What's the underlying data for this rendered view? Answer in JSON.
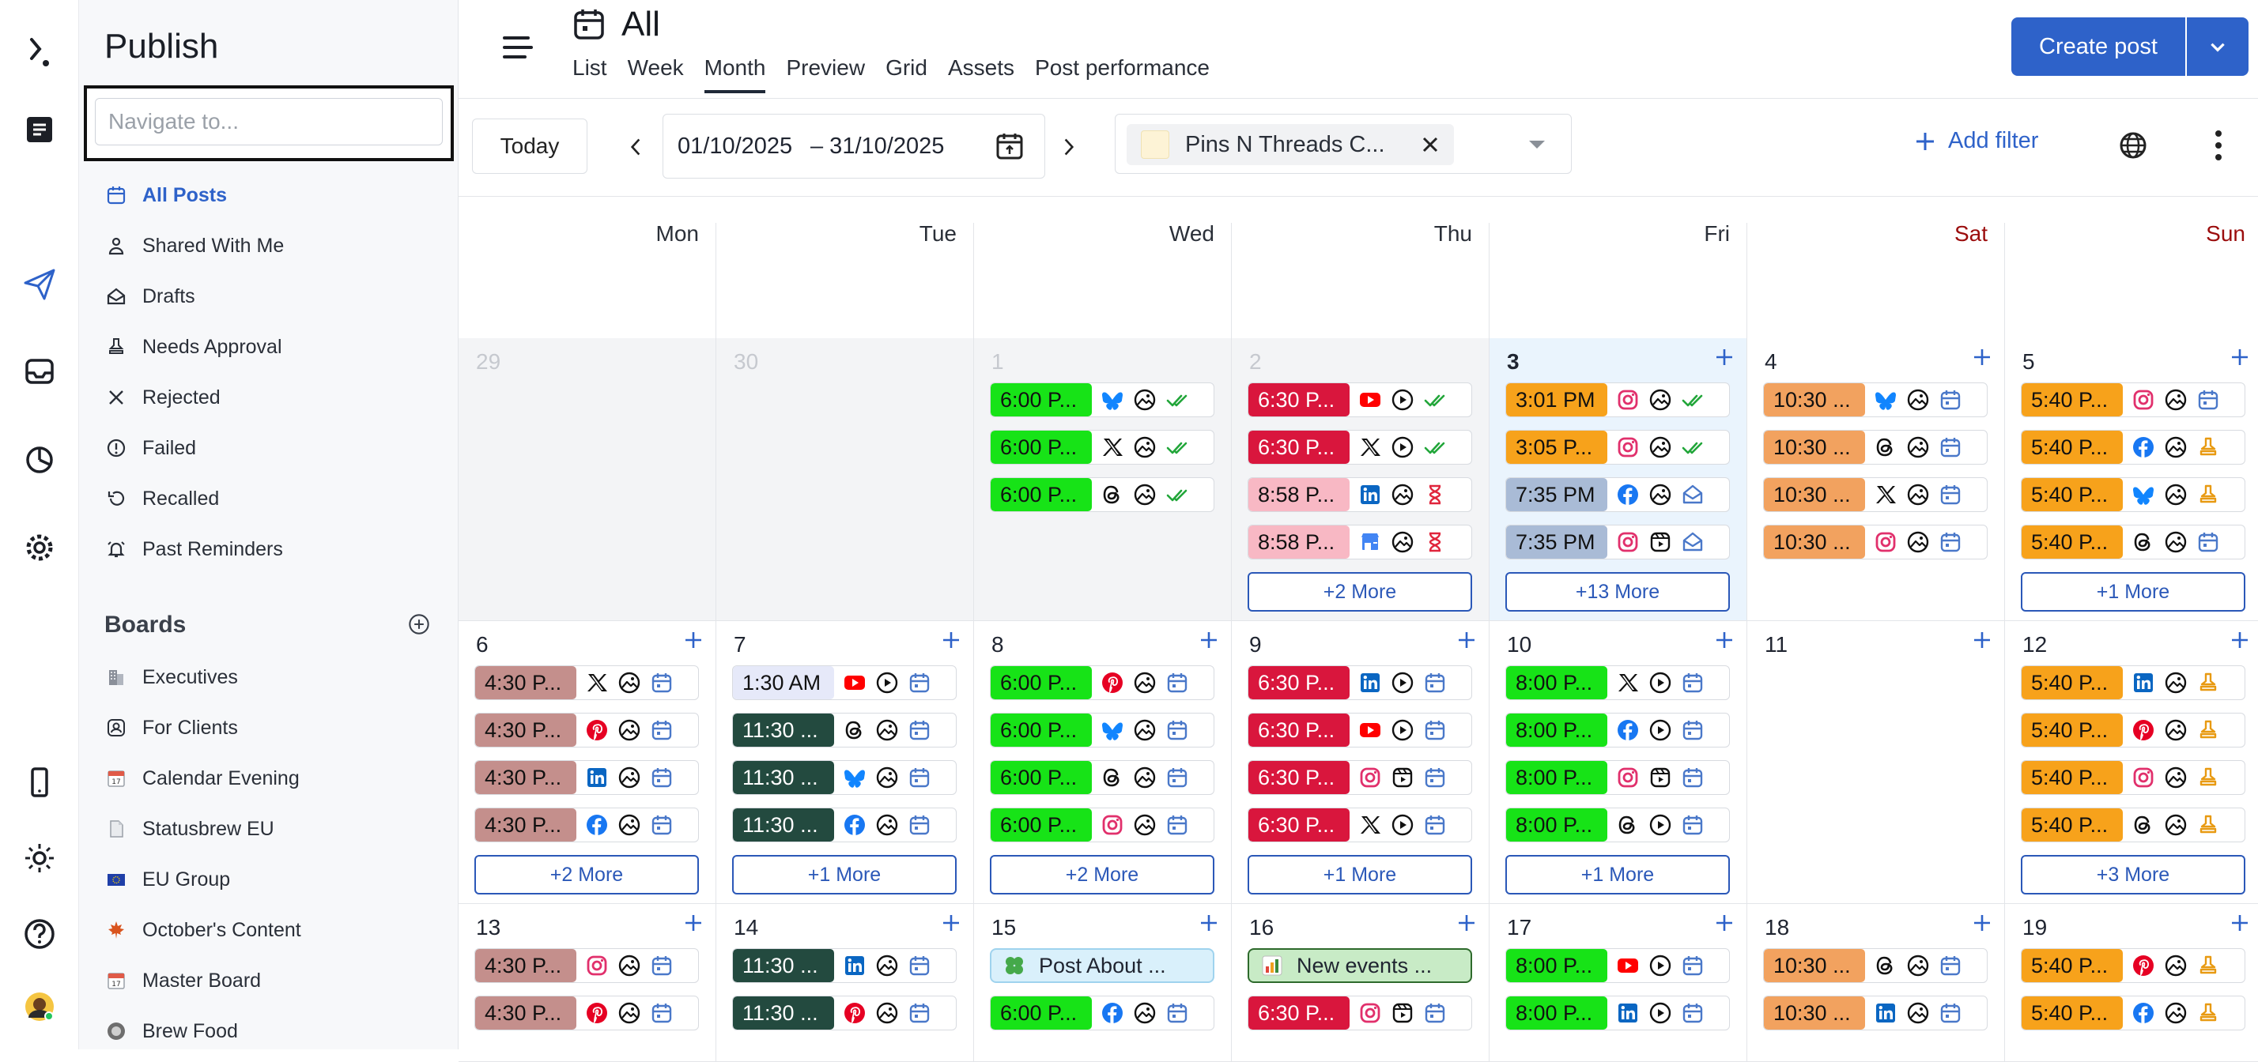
{
  "colors": {
    "accent": "#2e62c9",
    "weekend": "#9b0d0d",
    "today_bg": "#eaf4fd"
  },
  "rail": {
    "items": [
      "logo-icon",
      "publish-box-icon",
      "send-icon",
      "inbox-icon",
      "analytics-icon",
      "settings-icon",
      "mobile-icon",
      "theme-icon",
      "help-icon",
      "user-avatar"
    ]
  },
  "sidebar": {
    "title": "Publish",
    "search_placeholder": "Navigate to...",
    "items": [
      {
        "label": "All Posts",
        "icon": "calendar-icon",
        "active": true
      },
      {
        "label": "Shared With Me",
        "icon": "person-icon"
      },
      {
        "label": "Drafts",
        "icon": "draft-icon"
      },
      {
        "label": "Needs Approval",
        "icon": "stamp-icon"
      },
      {
        "label": "Rejected",
        "icon": "x-icon"
      },
      {
        "label": "Failed",
        "icon": "alert-icon"
      },
      {
        "label": "Recalled",
        "icon": "recall-icon"
      },
      {
        "label": "Past Reminders",
        "icon": "bell-icon"
      }
    ],
    "boards_title": "Boards",
    "boards": [
      {
        "label": "Executives",
        "icon": "building-icon"
      },
      {
        "label": "For Clients",
        "icon": "client-icon"
      },
      {
        "label": "Calendar Evening",
        "icon": "calendar17-icon"
      },
      {
        "label": "Statusbrew EU",
        "icon": "document-icon"
      },
      {
        "label": "EU Group",
        "icon": "eu-flag-icon"
      },
      {
        "label": "October's Content",
        "icon": "maple-leaf-icon"
      },
      {
        "label": "Master Board",
        "icon": "calendar17-icon"
      },
      {
        "label": "Brew Food",
        "icon": "avatar-icon"
      }
    ]
  },
  "header": {
    "title": "All",
    "tabs": [
      {
        "label": "List"
      },
      {
        "label": "Week"
      },
      {
        "label": "Month",
        "active": true
      },
      {
        "label": "Preview"
      },
      {
        "label": "Grid"
      },
      {
        "label": "Assets"
      },
      {
        "label": "Post performance"
      }
    ],
    "create_post": "Create post"
  },
  "toolbar": {
    "today": "Today",
    "date_start": "01/10/2025",
    "date_end": "– 31/10/2025",
    "filter_chip": "Pins N Threads C...",
    "add_filter": "Add filter"
  },
  "calendar": {
    "days": [
      {
        "label": "Mon"
      },
      {
        "label": "Tue"
      },
      {
        "label": "Wed"
      },
      {
        "label": "Thu"
      },
      {
        "label": "Fri"
      },
      {
        "label": "Sat",
        "weekend": true
      },
      {
        "label": "Sun",
        "weekend": true
      }
    ],
    "weeks": [
      [
        {
          "day": "29",
          "other": true,
          "posts": []
        },
        {
          "day": "30",
          "other": true,
          "posts": []
        },
        {
          "day": "1",
          "other": true,
          "posts": [
            {
              "time": "6:00 P...",
              "color": "#17e317",
              "network": "bluesky",
              "media": "image",
              "status": "published"
            },
            {
              "time": "6:00 P...",
              "color": "#17e317",
              "network": "x",
              "media": "image",
              "status": "published"
            },
            {
              "time": "6:00 P...",
              "color": "#17e317",
              "network": "threads",
              "media": "image",
              "status": "published"
            }
          ]
        },
        {
          "day": "2",
          "other": true,
          "posts": [
            {
              "time": "6:30 P...",
              "color": "#d9163d",
              "light": true,
              "network": "youtube",
              "media": "video",
              "status": "published"
            },
            {
              "time": "6:30 P...",
              "color": "#d9163d",
              "light": true,
              "network": "x",
              "media": "video",
              "status": "published"
            },
            {
              "time": "8:58 P...",
              "color": "#f8b8c4",
              "network": "linkedin",
              "media": "image",
              "status": "pending"
            },
            {
              "time": "8:58 P...",
              "color": "#f8b8c4",
              "network": "gmb",
              "media": "image",
              "status": "pending"
            }
          ],
          "more": "+2 More"
        },
        {
          "day": "3",
          "today": true,
          "plus": true,
          "posts": [
            {
              "time": "3:01 PM",
              "color": "#f7a21b",
              "network": "instagram",
              "media": "image",
              "status": "published"
            },
            {
              "time": "3:05 P...",
              "color": "#f7a21b",
              "network": "instagram",
              "media": "image",
              "status": "published"
            },
            {
              "time": "7:35 PM",
              "color": "#a9bbd6",
              "network": "facebook",
              "media": "image",
              "status": "draft"
            },
            {
              "time": "7:35 PM",
              "color": "#a9bbd6",
              "network": "instagram",
              "media": "reel",
              "status": "draft"
            }
          ],
          "more": "+13 More"
        },
        {
          "day": "4",
          "plus": true,
          "posts": [
            {
              "time": "10:30 ...",
              "color": "#f2a25f",
              "network": "bluesky",
              "media": "image",
              "status": "scheduled"
            },
            {
              "time": "10:30 ...",
              "color": "#f2a25f",
              "network": "threads",
              "media": "image",
              "status": "scheduled"
            },
            {
              "time": "10:30 ...",
              "color": "#f2a25f",
              "network": "x",
              "media": "image",
              "status": "scheduled"
            },
            {
              "time": "10:30 ...",
              "color": "#f2a25f",
              "network": "instagram",
              "media": "image",
              "status": "scheduled"
            }
          ]
        },
        {
          "day": "5",
          "plus": true,
          "posts": [
            {
              "time": "5:40 P...",
              "color": "#f7a21b",
              "network": "instagram",
              "media": "image",
              "status": "scheduled"
            },
            {
              "time": "5:40 P...",
              "color": "#f7a21b",
              "network": "facebook",
              "media": "image",
              "status": "approval"
            },
            {
              "time": "5:40 P...",
              "color": "#f7a21b",
              "network": "bluesky",
              "media": "image",
              "status": "approval"
            },
            {
              "time": "5:40 P...",
              "color": "#f7a21b",
              "network": "threads",
              "media": "image",
              "status": "scheduled"
            }
          ],
          "more": "+1 More"
        }
      ],
      [
        {
          "day": "6",
          "plus": true,
          "posts": [
            {
              "time": "4:30 P...",
              "color": "#c48f8c",
              "network": "x",
              "media": "image",
              "status": "scheduled"
            },
            {
              "time": "4:30 P...",
              "color": "#c48f8c",
              "network": "pinterest",
              "media": "image",
              "status": "scheduled"
            },
            {
              "time": "4:30 P...",
              "color": "#c48f8c",
              "network": "linkedin",
              "media": "image",
              "status": "scheduled"
            },
            {
              "time": "4:30 P...",
              "color": "#c48f8c",
              "network": "facebook",
              "media": "image",
              "status": "scheduled"
            }
          ],
          "more": "+2 More"
        },
        {
          "day": "7",
          "plus": true,
          "posts": [
            {
              "time": "1:30 AM",
              "color": "#e6e9f9",
              "network": "youtube",
              "media": "video",
              "status": "scheduled"
            },
            {
              "time": "11:30 ...",
              "color": "#234a3f",
              "light": true,
              "network": "threads",
              "media": "image",
              "status": "scheduled"
            },
            {
              "time": "11:30 ...",
              "color": "#234a3f",
              "light": true,
              "network": "bluesky",
              "media": "image",
              "status": "scheduled"
            },
            {
              "time": "11:30 ...",
              "color": "#234a3f",
              "light": true,
              "network": "facebook",
              "media": "image",
              "status": "scheduled"
            }
          ],
          "more": "+1 More"
        },
        {
          "day": "8",
          "plus": true,
          "posts": [
            {
              "time": "6:00 P...",
              "color": "#17e317",
              "network": "pinterest",
              "media": "image",
              "status": "scheduled"
            },
            {
              "time": "6:00 P...",
              "color": "#17e317",
              "network": "bluesky",
              "media": "image",
              "status": "scheduled"
            },
            {
              "time": "6:00 P...",
              "color": "#17e317",
              "network": "threads",
              "media": "image",
              "status": "scheduled"
            },
            {
              "time": "6:00 P...",
              "color": "#17e317",
              "network": "instagram",
              "media": "image",
              "status": "scheduled"
            }
          ],
          "more": "+2 More"
        },
        {
          "day": "9",
          "plus": true,
          "posts": [
            {
              "time": "6:30 P...",
              "color": "#d9163d",
              "light": true,
              "network": "linkedin",
              "media": "video",
              "status": "scheduled"
            },
            {
              "time": "6:30 P...",
              "color": "#d9163d",
              "light": true,
              "network": "youtube",
              "media": "video",
              "status": "scheduled"
            },
            {
              "time": "6:30 P...",
              "color": "#d9163d",
              "light": true,
              "network": "instagram",
              "media": "reel",
              "status": "scheduled"
            },
            {
              "time": "6:30 P...",
              "color": "#d9163d",
              "light": true,
              "network": "x",
              "media": "video",
              "status": "scheduled"
            }
          ],
          "more": "+1 More"
        },
        {
          "day": "10",
          "plus": true,
          "posts": [
            {
              "time": "8:00 P...",
              "color": "#17e317",
              "network": "x",
              "media": "video",
              "status": "scheduled"
            },
            {
              "time": "8:00 P...",
              "color": "#17e317",
              "network": "facebook",
              "media": "video",
              "status": "scheduled"
            },
            {
              "time": "8:00 P...",
              "color": "#17e317",
              "network": "instagram",
              "media": "reel",
              "status": "scheduled"
            },
            {
              "time": "8:00 P...",
              "color": "#17e317",
              "network": "threads",
              "media": "video",
              "status": "scheduled"
            }
          ],
          "more": "+1 More"
        },
        {
          "day": "11",
          "plus": true,
          "posts": []
        },
        {
          "day": "12",
          "plus": true,
          "posts": [
            {
              "time": "5:40 P...",
              "color": "#f7a21b",
              "network": "linkedin",
              "media": "image",
              "status": "approval"
            },
            {
              "time": "5:40 P...",
              "color": "#f7a21b",
              "network": "pinterest",
              "media": "image",
              "status": "approval"
            },
            {
              "time": "5:40 P...",
              "color": "#f7a21b",
              "network": "instagram",
              "media": "image",
              "status": "approval"
            },
            {
              "time": "5:40 P...",
              "color": "#f7a21b",
              "network": "threads",
              "media": "image",
              "status": "approval"
            }
          ],
          "more": "+3 More"
        }
      ],
      [
        {
          "day": "13",
          "plus": true,
          "posts": [
            {
              "time": "4:30 P...",
              "color": "#c48f8c",
              "network": "instagram",
              "media": "image",
              "status": "scheduled"
            },
            {
              "time": "4:30 P...",
              "color": "#c48f8c",
              "network": "pinterest",
              "media": "image",
              "status": "scheduled"
            }
          ]
        },
        {
          "day": "14",
          "plus": true,
          "posts": [
            {
              "time": "11:30 ...",
              "color": "#234a3f",
              "light": true,
              "network": "linkedin",
              "media": "image",
              "status": "scheduled"
            },
            {
              "time": "11:30 ...",
              "color": "#234a3f",
              "light": true,
              "network": "pinterest",
              "media": "image",
              "status": "scheduled"
            }
          ]
        },
        {
          "day": "15",
          "plus": true,
          "note": {
            "text": "Post About ...",
            "bg": "#d9f0fb",
            "border": "#9fd3ee",
            "emoji": "clover"
          },
          "posts": [
            {
              "time": "6:00 P...",
              "color": "#17e317",
              "network": "facebook",
              "media": "image",
              "status": "scheduled"
            }
          ]
        },
        {
          "day": "16",
          "plus": true,
          "note": {
            "text": "New events ...",
            "bg": "#c8ebc6",
            "border": "#2e6a2c",
            "emoji": "chart"
          },
          "posts": [
            {
              "time": "6:30 P...",
              "color": "#d9163d",
              "light": true,
              "network": "instagram",
              "media": "reel",
              "status": "scheduled"
            }
          ]
        },
        {
          "day": "17",
          "plus": true,
          "posts": [
            {
              "time": "8:00 P...",
              "color": "#17e317",
              "network": "youtube",
              "media": "video",
              "status": "scheduled"
            },
            {
              "time": "8:00 P...",
              "color": "#17e317",
              "network": "linkedin",
              "media": "video",
              "status": "scheduled"
            }
          ]
        },
        {
          "day": "18",
          "plus": true,
          "posts": [
            {
              "time": "10:30 ...",
              "color": "#f2a25f",
              "network": "threads",
              "media": "image",
              "status": "scheduled"
            },
            {
              "time": "10:30 ...",
              "color": "#f2a25f",
              "network": "linkedin",
              "media": "image",
              "status": "scheduled"
            }
          ]
        },
        {
          "day": "19",
          "plus": true,
          "posts": [
            {
              "time": "5:40 P...",
              "color": "#f7a21b",
              "network": "pinterest",
              "media": "image",
              "status": "approval"
            },
            {
              "time": "5:40 P...",
              "color": "#f7a21b",
              "network": "facebook",
              "media": "image",
              "status": "approval"
            }
          ]
        }
      ]
    ]
  }
}
